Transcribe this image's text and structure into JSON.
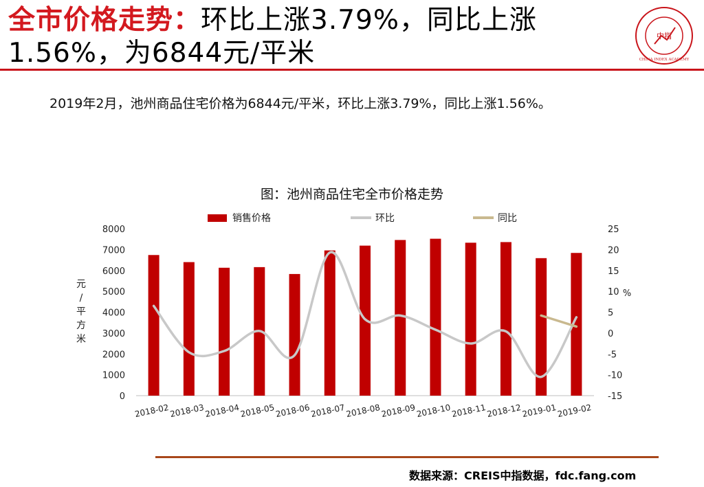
{
  "header": {
    "title_highlight": "全市价格走势：",
    "title_line1_rest": "环比上涨3.79%，同比上涨",
    "title_line2": "1.56%，为6844元/平米",
    "logo_text": "中指",
    "logo_ring_text": "CHINA INDEX ACADEMY"
  },
  "summary": "2019年2月，池州商品住宅价格为6844元/平米，环比上涨3.79%，同比上涨1.56%。",
  "chart_data": {
    "type": "bar",
    "title": "图：池州商品住宅全市价格走势",
    "categories": [
      "2018-02",
      "2018-03",
      "2018-04",
      "2018-05",
      "2018-06",
      "2018-07",
      "2018-08",
      "2018-09",
      "2018-10",
      "2018-11",
      "2018-12",
      "2019-01",
      "2019-02"
    ],
    "series": [
      {
        "name": "销售价格",
        "type": "bar",
        "axis": "left",
        "color": "#c00000",
        "values": [
          6740,
          6400,
          6130,
          6160,
          5830,
          6960,
          7190,
          7460,
          7520,
          7330,
          7360,
          6590,
          6840
        ]
      },
      {
        "name": "环比",
        "type": "line",
        "axis": "right",
        "color": "#c8c8c8",
        "values": [
          6.5,
          -4.6,
          -4.3,
          0.5,
          -5.3,
          19.3,
          3.3,
          4.2,
          0.8,
          -2.5,
          0.4,
          -10.5,
          3.79
        ]
      },
      {
        "name": "同比",
        "type": "line",
        "axis": "right",
        "color": "#c9b98f",
        "values": [
          null,
          null,
          null,
          null,
          null,
          null,
          null,
          null,
          null,
          null,
          null,
          4.2,
          1.56
        ]
      }
    ],
    "ylabel_left": "元/平方米",
    "ylabel_right": "%",
    "ylim_left": [
      0,
      8000
    ],
    "yticks_left": [
      0,
      1000,
      2000,
      3000,
      4000,
      5000,
      6000,
      7000,
      8000
    ],
    "ylim_right": [
      -15,
      25
    ],
    "yticks_right": [
      -15,
      -10,
      -5,
      0,
      5,
      10,
      15,
      20,
      25
    ],
    "legend_position": "top",
    "grid": false
  },
  "source": "数据来源：CREIS中指数据，fdc.fang.com"
}
